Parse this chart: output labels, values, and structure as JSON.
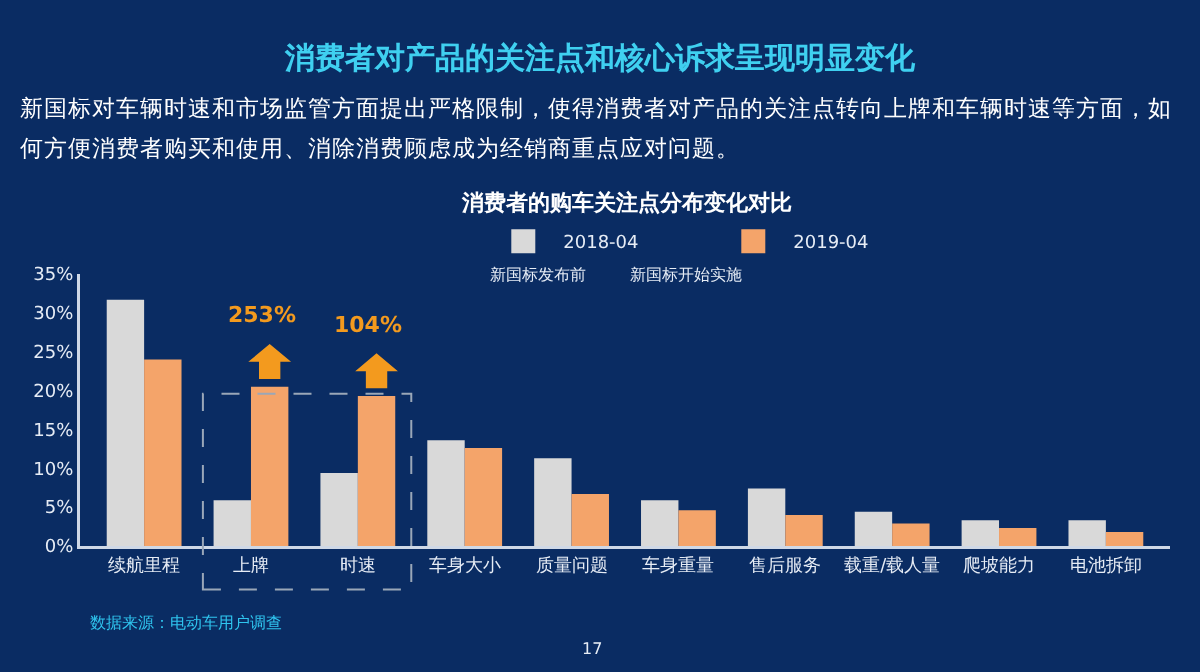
{
  "chart_data": {
    "type": "bar",
    "title": "消费者对产品的关注点和核心诉求呈现明显变化",
    "subtitle": "新国标对车辆时速和市场监管方面提出严格限制，使得消费者对产品的关注点转向上牌和车辆时速等方面，如何方便消费者购买和使用、消除消费顾虑成为经销商重点应对问题。",
    "categories": [
      "续航里程",
      "上牌",
      "时速",
      "车身大小",
      "质量问题",
      "车身重量",
      "售后服务",
      "载重/载人量",
      "爬坡能力",
      "电池拆卸"
    ],
    "series": [
      {
        "name": "2018-04",
        "color": "#d9d9d9",
        "values": [
          31.7,
          5.9,
          9.4,
          13.6,
          11.3,
          5.9,
          7.4,
          4.4,
          3.3,
          3.3
        ]
      },
      {
        "name": "2019-04",
        "color": "#f4a46a",
        "values": [
          24,
          20.5,
          19.3,
          12.6,
          6.7,
          4.6,
          4.0,
          2.9,
          2.3,
          1.8
        ]
      }
    ],
    "ylim": [
      0,
      35
    ],
    "yticks": [
      {
        "value": 0,
        "label": "0%"
      },
      {
        "value": 5,
        "label": "5%"
      },
      {
        "value": 10,
        "label": "10%"
      },
      {
        "value": 15,
        "label": "15%"
      },
      {
        "value": 20,
        "label": "20%"
      },
      {
        "value": 25,
        "label": "25%"
      },
      {
        "value": 30,
        "label": "30%"
      },
      {
        "value": 35,
        "label": "35%"
      }
    ],
    "grid": false,
    "legend": "top",
    "annotations": [
      "消费者的购车关注点分布变化对比",
      "新国标发布前",
      "新国标开始实施",
      "数据来源：电动车用户调查",
      "17",
      {
        "text": "253%",
        "x": "上牌",
        "y": 20.5
      },
      {
        "text": "104%",
        "x": "时速",
        "y": 19.3
      }
    ]
  }
}
